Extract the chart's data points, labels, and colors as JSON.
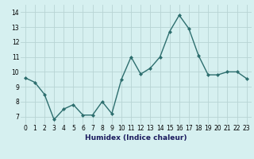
{
  "x": [
    0,
    1,
    2,
    3,
    4,
    5,
    6,
    7,
    8,
    9,
    10,
    11,
    12,
    13,
    14,
    15,
    16,
    17,
    18,
    19,
    20,
    21,
    22,
    23
  ],
  "y": [
    9.6,
    9.3,
    8.5,
    6.8,
    7.5,
    7.8,
    7.1,
    7.1,
    8.0,
    7.2,
    9.5,
    11.0,
    9.85,
    10.25,
    11.0,
    12.7,
    13.8,
    12.9,
    11.1,
    9.8,
    9.8,
    10.0,
    10.0,
    9.55
  ],
  "line_color": "#2d6e6e",
  "marker": "D",
  "marker_size": 2.0,
  "bg_color": "#d6f0f0",
  "grid_color": "#b8d4d4",
  "xlabel": "Humidex (Indice chaleur)",
  "ylim": [
    6.5,
    14.5
  ],
  "xlim": [
    -0.5,
    23.5
  ],
  "yticks": [
    7,
    8,
    9,
    10,
    11,
    12,
    13,
    14
  ],
  "xticks": [
    0,
    1,
    2,
    3,
    4,
    5,
    6,
    7,
    8,
    9,
    10,
    11,
    12,
    13,
    14,
    15,
    16,
    17,
    18,
    19,
    20,
    21,
    22,
    23
  ],
  "tick_fontsize": 5.5,
  "xlabel_fontsize": 6.5,
  "line_width": 1.0
}
